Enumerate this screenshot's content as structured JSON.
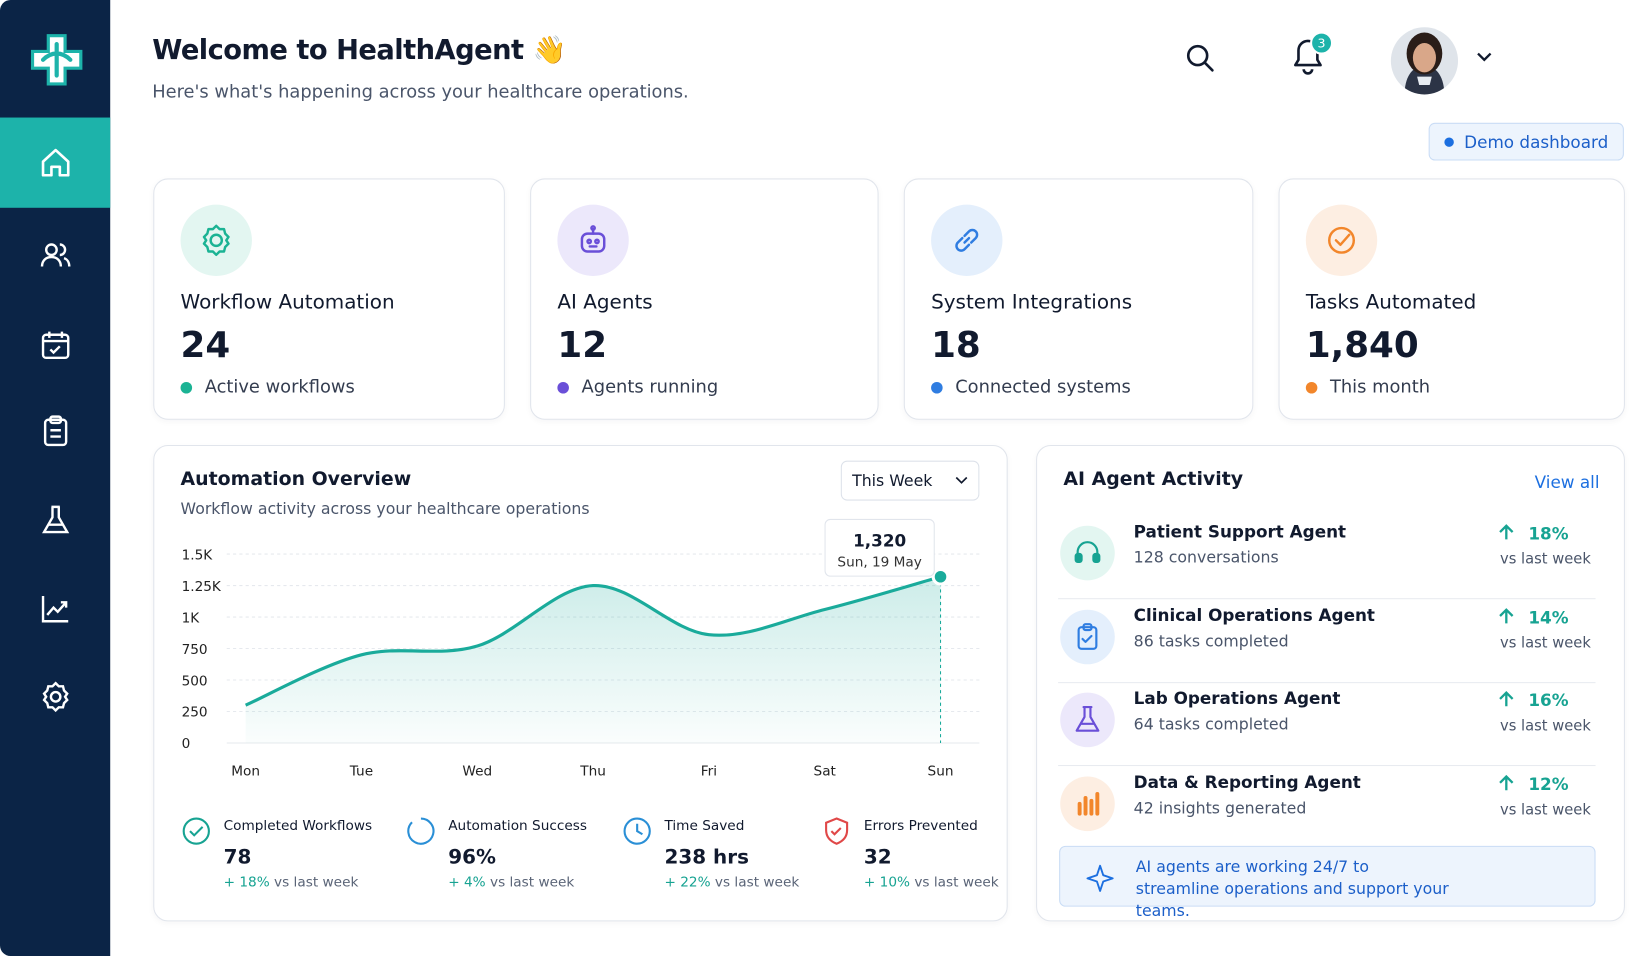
{
  "header": {
    "title": "Welcome to HealthAgent 👋",
    "subtitle": "Here's what's happening across your healthcare operations.",
    "notifications": "3",
    "badge": "Demo dashboard"
  },
  "cards": [
    {
      "title": "Workflow Automation",
      "value": "24",
      "caption": "Active workflows",
      "color": "#1bb394"
    },
    {
      "title": "AI Agents",
      "value": "12",
      "caption": "Agents running",
      "color": "#6a4fd8"
    },
    {
      "title": "System Integrations",
      "value": "18",
      "caption": "Connected systems",
      "color": "#2f7de1"
    },
    {
      "title": "Tasks Automated",
      "value": "1,840",
      "caption": "This month",
      "color": "#f2862b"
    }
  ],
  "chart_data": {
    "type": "line",
    "title": "Automation Overview",
    "subtitle": "Workflow activity across your healthcare operations",
    "period": "This Week",
    "categories": [
      "Mon",
      "Tue",
      "Wed",
      "Thu",
      "Fri",
      "Sat",
      "Sun"
    ],
    "values": [
      300,
      700,
      770,
      1250,
      860,
      1060,
      1320
    ],
    "value_labels": [
      null,
      null,
      null,
      null,
      null,
      null,
      "1,320"
    ],
    "annotation": "Sun, 19 May",
    "color": "#1aab9b",
    "ylim": [
      0,
      1500
    ],
    "yticks": [
      0,
      250,
      500,
      750,
      {
        "value": 1000,
        "label": "1K"
      },
      {
        "value": 1250,
        "label": "1.25K"
      },
      {
        "value": 1500,
        "label": "1.5K"
      }
    ],
    "grid": true
  },
  "summary": [
    {
      "label": "Completed Workflows",
      "value": "78",
      "change": "+ 18%",
      "note": "vs last week"
    },
    {
      "label": "Automation Success",
      "value": "96%",
      "change": "+ 4%",
      "note": "vs last week"
    },
    {
      "label": "Time Saved",
      "value": "238 hrs",
      "change": "+ 22%",
      "note": "vs last week"
    },
    {
      "label": "Errors Prevented",
      "value": "32",
      "change": "+ 10%",
      "note": "vs last week"
    }
  ],
  "activity": {
    "title": "AI Agent Activity",
    "link": "View all",
    "agents": [
      {
        "name": "Patient Support Agent",
        "detail": "128 conversations",
        "change": "18%",
        "note": "vs last week"
      },
      {
        "name": "Clinical Operations Agent",
        "detail": "86 tasks completed",
        "change": "14%",
        "note": "vs last week"
      },
      {
        "name": "Lab Operations Agent",
        "detail": "64 tasks completed",
        "change": "16%",
        "note": "vs last week"
      },
      {
        "name": "Data & Reporting Agent",
        "detail": "42 insights generated",
        "change": "12%",
        "note": "vs last week"
      }
    ],
    "footer": "AI agents are working 24/7 to streamline operations and support your teams."
  }
}
